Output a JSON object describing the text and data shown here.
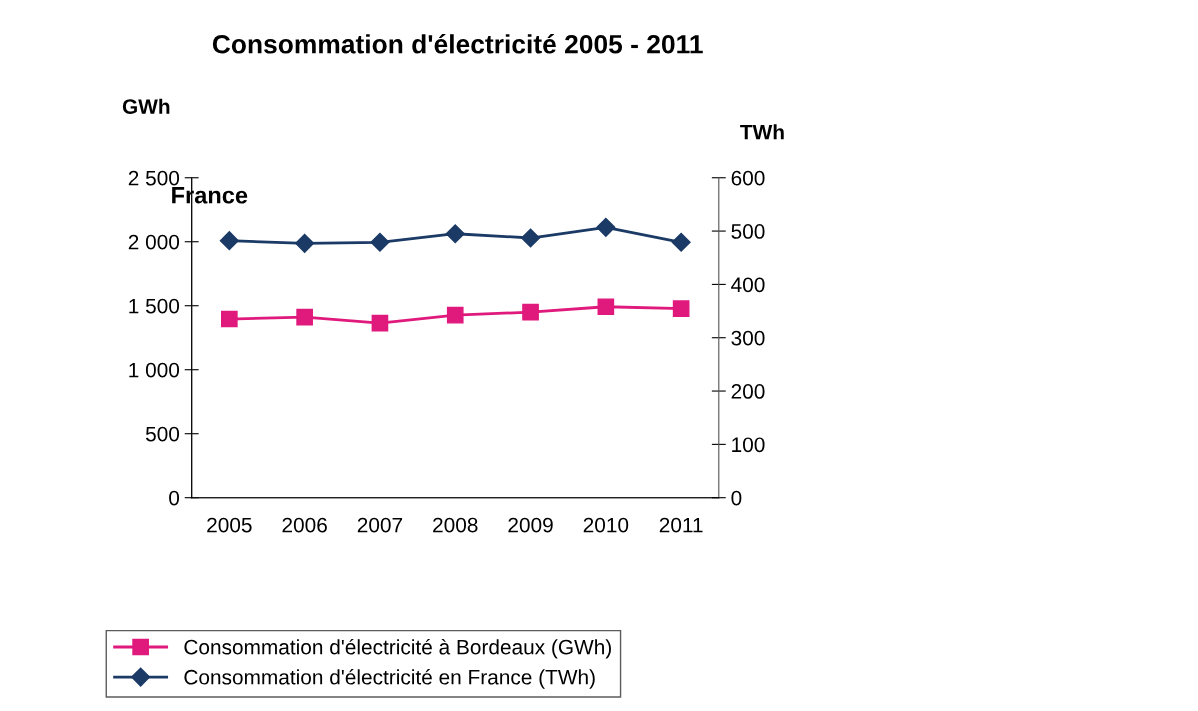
{
  "chart_data": {
    "type": "line",
    "title": "Consommation d'électricité 2005 - 2011",
    "ylabel": "GWh",
    "y2label": "TWh",
    "categories": [
      "2005",
      "2006",
      "2007",
      "2008",
      "2009",
      "2010",
      "2011"
    ],
    "series": [
      {
        "name": "Consommation d'électricité à Bordeaux (GWh)",
        "color": "#e0197d",
        "marker": "square",
        "values": [
          1396,
          1411,
          1364,
          1426,
          1450,
          1492,
          1477
        ]
      },
      {
        "name": "Consommation d'électricité en France (TWh)",
        "color": "#1b3a66",
        "marker": "diamond",
        "axis": "y2",
        "values": [
          482,
          477,
          479,
          495,
          487,
          507,
          479
        ]
      }
    ],
    "ylim": [
      0,
      2500
    ],
    "yticks": [
      {
        "value": 0,
        "label": "0"
      },
      {
        "value": 500,
        "label": "500"
      },
      {
        "value": 1000,
        "label": "1 000"
      },
      {
        "value": 1500,
        "label": "1 500"
      },
      {
        "value": 2000,
        "label": "2 000"
      },
      {
        "value": 2500,
        "label": "2 500"
      }
    ],
    "y2lim": [
      0,
      600
    ],
    "y2ticks": [
      0,
      100,
      200,
      300,
      400,
      500,
      600
    ],
    "annotations": [
      "France"
    ],
    "grid": false,
    "legend": "bottom",
    "line_style": "solid"
  }
}
